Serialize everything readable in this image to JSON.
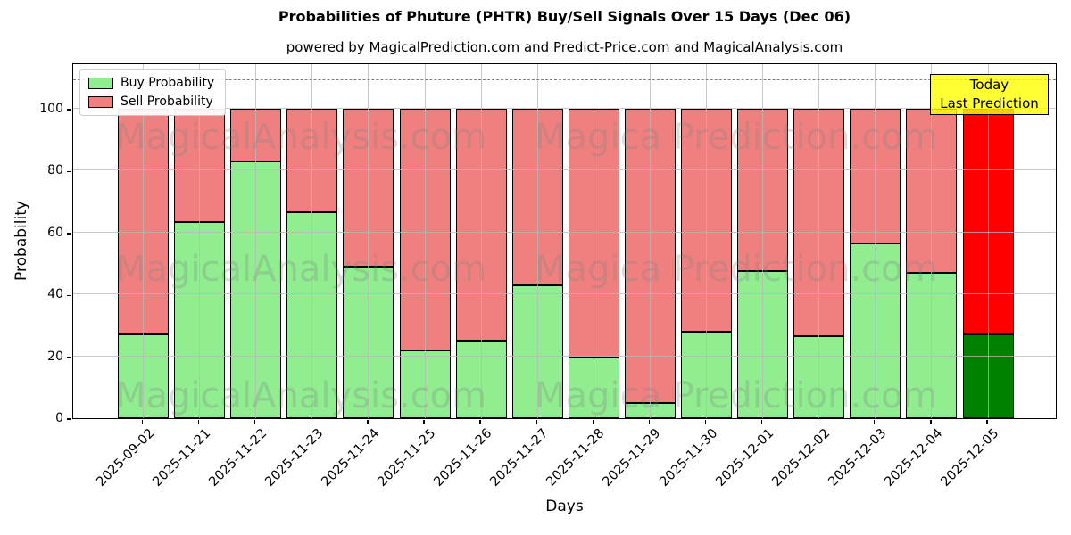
{
  "figure": {
    "title": "Probabilities of Phuture (PHTR) Buy/Sell Signals Over 15 Days (Dec 06)",
    "subtitle": "powered by MagicalPrediction.com and Predict-Price.com and MagicalAnalysis.com"
  },
  "legend": {
    "items": [
      {
        "label": "Buy Probability",
        "color": "#90ee90"
      },
      {
        "label": "Sell Probability",
        "color": "#f08080"
      }
    ]
  },
  "annotation_box": {
    "line1": "Today",
    "line2": "Last Prediction",
    "bg_color": "#ffff00"
  },
  "watermark": {
    "left_text": "MagicalAnalysis.com",
    "right_text": "Magica Prediction.com"
  },
  "axes": {
    "xlabel": "Days",
    "ylabel": "Probability",
    "yticks": [
      0,
      20,
      40,
      60,
      80,
      100
    ],
    "ylim": [
      0,
      115
    ],
    "dashed_guide_y": 110,
    "grid": true
  },
  "colors": {
    "buy": "#90ee90",
    "sell": "#f08080",
    "today_buy": "#008000",
    "today_sell": "#ff0000",
    "grid": "#b8b8b8",
    "dashed_line": "#7f7f7f",
    "annotation_bg": "#ffff00"
  },
  "chart_data": {
    "type": "bar",
    "stacked": true,
    "title": "Probabilities of Phuture (PHTR) Buy/Sell Signals Over 15 Days (Dec 06)",
    "xlabel": "Days",
    "ylabel": "Probability",
    "ylim": [
      0,
      115
    ],
    "grid": true,
    "legend_position": "upper left",
    "categories": [
      "2025-09-02",
      "2025-11-21",
      "2025-11-22",
      "2025-11-23",
      "2025-11-24",
      "2025-11-25",
      "2025-11-26",
      "2025-11-27",
      "2025-11-28",
      "2025-11-29",
      "2025-11-30",
      "2025-12-01",
      "2025-12-02",
      "2025-12-03",
      "2025-12-04",
      "2025-12-05"
    ],
    "series": [
      {
        "name": "Buy Probability",
        "color": "#90ee90",
        "values": [
          27,
          63.5,
          83,
          66.5,
          49,
          22,
          25,
          43,
          19.5,
          5,
          28,
          47.5,
          26.5,
          56.5,
          47,
          27
        ]
      },
      {
        "name": "Sell Probability",
        "color": "#f08080",
        "values": [
          73,
          36.5,
          17,
          33.5,
          51,
          78,
          75,
          57,
          80.5,
          95,
          72,
          52.5,
          73.5,
          43.5,
          53,
          73
        ]
      }
    ],
    "today_index": 15,
    "today_colors": {
      "buy": "#008000",
      "sell": "#ff0000"
    },
    "dashed_guide_y": 110
  }
}
